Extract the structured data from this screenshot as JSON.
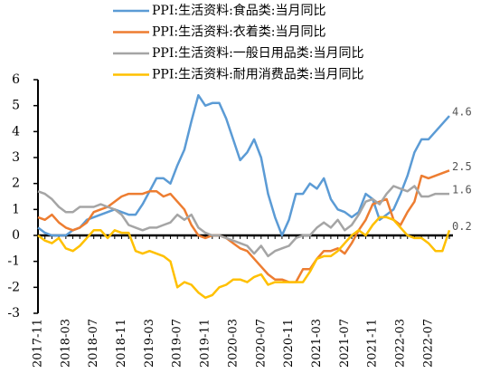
{
  "chart_data": {
    "type": "line",
    "categories": [
      "2017-11",
      null,
      null,
      null,
      "2018-03",
      null,
      null,
      null,
      "2018-07",
      null,
      null,
      null,
      "2018-11",
      null,
      null,
      null,
      "2019-03",
      null,
      null,
      null,
      "2019-07",
      null,
      null,
      null,
      "2019-11",
      null,
      null,
      null,
      "2020-03",
      null,
      null,
      null,
      "2020-07",
      null,
      null,
      null,
      "2020-11",
      null,
      null,
      null,
      "2021-03",
      null,
      null,
      null,
      "2021-07",
      null,
      null,
      null,
      "2021-11",
      null,
      null,
      null,
      "2022-03",
      null,
      null,
      null,
      "2022-07",
      null,
      null,
      null
    ],
    "series": [
      {
        "name": "PPI:生活资料:食品类:当月同比",
        "color": "#5b9bd5",
        "values": [
          0.3,
          0.1,
          0.0,
          0.0,
          0.0,
          0.2,
          0.3,
          0.6,
          0.7,
          0.8,
          0.9,
          1.0,
          0.9,
          0.8,
          0.8,
          1.2,
          1.7,
          2.2,
          2.2,
          2.0,
          2.7,
          3.3,
          4.4,
          5.4,
          5.0,
          5.1,
          5.1,
          4.5,
          3.7,
          2.9,
          3.2,
          3.7,
          3.0,
          1.6,
          0.7,
          0.0,
          0.6,
          1.6,
          1.6,
          2.0,
          1.8,
          2.2,
          1.4,
          1.0,
          0.9,
          0.7,
          0.9,
          1.6,
          1.4,
          0.6,
          0.8,
          1.0,
          1.6,
          2.3,
          3.2,
          3.7,
          3.7,
          4.0,
          4.3,
          4.6
        ]
      },
      {
        "name": "PPI:生活资料:衣着类:当月同比",
        "color": "#ed7d31",
        "values": [
          0.7,
          0.6,
          0.8,
          0.5,
          0.3,
          0.2,
          0.3,
          0.5,
          0.9,
          1.0,
          1.1,
          1.3,
          1.5,
          1.6,
          1.6,
          1.6,
          1.7,
          1.7,
          1.5,
          1.6,
          1.3,
          1.0,
          0.4,
          0.0,
          -0.1,
          0.0,
          0.0,
          -0.1,
          -0.3,
          -0.5,
          -0.6,
          -0.9,
          -1.2,
          -1.5,
          -1.7,
          -1.7,
          -1.8,
          -1.8,
          -1.3,
          -1.3,
          -0.9,
          -0.6,
          -0.6,
          -0.5,
          -0.7,
          -0.3,
          0.2,
          0.6,
          1.2,
          1.3,
          1.4,
          0.6,
          0.4,
          0.9,
          1.3,
          2.3,
          2.2,
          2.3,
          2.4,
          2.5
        ]
      },
      {
        "name": "PPI:生活资料:一般日用品类:当月同比",
        "color": "#a5a5a5",
        "values": [
          1.7,
          1.6,
          1.4,
          1.1,
          0.9,
          0.9,
          1.1,
          1.1,
          1.1,
          1.2,
          1.1,
          1.0,
          0.8,
          0.4,
          0.3,
          0.2,
          0.3,
          0.3,
          0.4,
          0.5,
          0.8,
          0.6,
          0.8,
          0.3,
          0.1,
          0.0,
          0.0,
          -0.1,
          -0.2,
          -0.3,
          -0.4,
          -0.7,
          -0.4,
          -0.8,
          -0.6,
          -0.5,
          -0.4,
          -0.1,
          0.0,
          0.0,
          0.3,
          0.5,
          0.3,
          0.6,
          0.2,
          0.4,
          0.8,
          1.3,
          1.4,
          1.2,
          1.6,
          1.9,
          1.8,
          1.7,
          1.9,
          1.5,
          1.5,
          1.6,
          1.6,
          1.6
        ]
      },
      {
        "name": "PPI:生活资料:耐用消费品类:当月同比",
        "color": "#ffc000",
        "values": [
          0.0,
          -0.2,
          -0.3,
          -0.1,
          -0.5,
          -0.6,
          -0.4,
          -0.1,
          0.2,
          0.2,
          -0.1,
          0.2,
          0.1,
          0.1,
          -0.6,
          -0.7,
          -0.6,
          -0.7,
          -0.8,
          -1.0,
          -2.0,
          -1.8,
          -1.9,
          -2.2,
          -2.4,
          -2.3,
          -2.0,
          -1.9,
          -1.7,
          -1.7,
          -1.8,
          -1.6,
          -1.5,
          -1.9,
          -1.8,
          -1.8,
          -1.8,
          -1.8,
          -1.8,
          -1.4,
          -0.9,
          -0.8,
          -0.8,
          -0.6,
          -0.3,
          0.0,
          0.2,
          0.0,
          0.4,
          0.7,
          0.7,
          0.6,
          0.3,
          0.0,
          -0.1,
          -0.1,
          -0.3,
          -0.6,
          -0.6,
          0.2
        ]
      }
    ],
    "ylim": [
      -3,
      6
    ],
    "yticks": [
      -3,
      -2,
      -1,
      0,
      1,
      2,
      3,
      4,
      5,
      6
    ],
    "data_labels": "last",
    "legend": "top",
    "grid": false
  }
}
